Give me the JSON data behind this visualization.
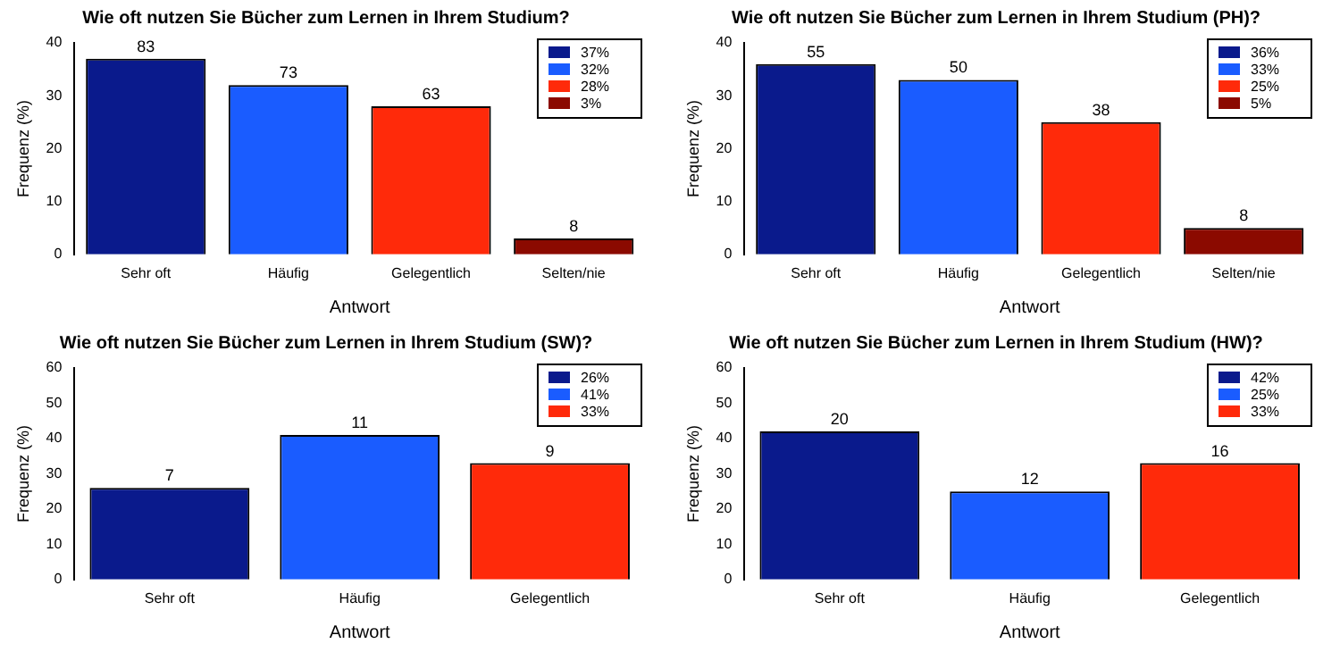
{
  "chart_data": [
    {
      "type": "bar",
      "title": "Wie oft nutzen Sie Bücher zum Lernen in Ihrem Studium?",
      "xlabel": "Antwort",
      "ylabel": "Frequenz (%)",
      "categories": [
        "Sehr oft",
        "Häufig",
        "Gelegentlich",
        "Selten/nie"
      ],
      "ylim": [
        0,
        40
      ],
      "yticks": [
        0,
        10,
        20,
        30,
        40
      ],
      "grid": false,
      "legend": "top right",
      "series": [
        {
          "name": "37%",
          "color": "#0a1a8c",
          "values": [
            37,
            null,
            null,
            null
          ]
        },
        {
          "name": "32%",
          "color": "#1a5cff",
          "values": [
            null,
            32,
            null,
            null
          ]
        },
        {
          "name": "28%",
          "color": "#ff2a0a",
          "values": [
            null,
            null,
            28,
            null
          ]
        },
        {
          "name": "3%",
          "color": "#8b0a00",
          "values": [
            null,
            null,
            null,
            3
          ]
        }
      ],
      "annotations": [
        {
          "text": "83",
          "x": "Sehr oft",
          "y": 37
        },
        {
          "text": "73",
          "x": "Häufig",
          "y": 32
        },
        {
          "text": "63",
          "x": "Gelegentlich",
          "y": 28
        },
        {
          "text": "8",
          "x": "Selten/nie",
          "y": 3
        }
      ]
    },
    {
      "type": "bar",
      "title": "Wie oft nutzen Sie Bücher zum Lernen in Ihrem Studium (PH)?",
      "xlabel": "Antwort",
      "ylabel": "Frequenz (%)",
      "categories": [
        "Sehr oft",
        "Häufig",
        "Gelegentlich",
        "Selten/nie"
      ],
      "ylim": [
        0,
        40
      ],
      "yticks": [
        0,
        10,
        20,
        30,
        40
      ],
      "grid": false,
      "legend": "top right",
      "series": [
        {
          "name": "36%",
          "color": "#0a1a8c",
          "values": [
            36,
            null,
            null,
            null
          ]
        },
        {
          "name": "33%",
          "color": "#1a5cff",
          "values": [
            null,
            33,
            null,
            null
          ]
        },
        {
          "name": "25%",
          "color": "#ff2a0a",
          "values": [
            null,
            null,
            25,
            null
          ]
        },
        {
          "name": "5%",
          "color": "#8b0a00",
          "values": [
            null,
            null,
            null,
            5
          ]
        }
      ],
      "annotations": [
        {
          "text": "55",
          "x": "Sehr oft",
          "y": 36
        },
        {
          "text": "50",
          "x": "Häufig",
          "y": 33
        },
        {
          "text": "38",
          "x": "Gelegentlich",
          "y": 25
        },
        {
          "text": "8",
          "x": "Selten/nie",
          "y": 5
        }
      ]
    },
    {
      "type": "bar",
      "title": "Wie oft nutzen Sie Bücher zum Lernen in Ihrem Studium (SW)?",
      "xlabel": "Antwort",
      "ylabel": "Frequenz (%)",
      "categories": [
        "Sehr oft",
        "Häufig",
        "Gelegentlich"
      ],
      "ylim": [
        0,
        60
      ],
      "yticks": [
        0,
        10,
        20,
        30,
        40,
        50,
        60
      ],
      "grid": false,
      "legend": "top right",
      "series": [
        {
          "name": "26%",
          "color": "#0a1a8c",
          "values": [
            26,
            null,
            null
          ]
        },
        {
          "name": "41%",
          "color": "#1a5cff",
          "values": [
            null,
            41,
            null
          ]
        },
        {
          "name": "33%",
          "color": "#ff2a0a",
          "values": [
            null,
            null,
            33
          ]
        }
      ],
      "annotations": [
        {
          "text": "7",
          "x": "Sehr oft",
          "y": 26
        },
        {
          "text": "11",
          "x": "Häufig",
          "y": 41
        },
        {
          "text": "9",
          "x": "Gelegentlich",
          "y": 33
        }
      ]
    },
    {
      "type": "bar",
      "title": "Wie oft nutzen Sie Bücher zum Lernen in Ihrem Studium (HW)?",
      "xlabel": "Antwort",
      "ylabel": "Frequenz (%)",
      "categories": [
        "Sehr oft",
        "Häufig",
        "Gelegentlich"
      ],
      "ylim": [
        0,
        60
      ],
      "yticks": [
        0,
        10,
        20,
        30,
        40,
        50,
        60
      ],
      "grid": false,
      "legend": "top right",
      "series": [
        {
          "name": "42%",
          "color": "#0a1a8c",
          "values": [
            42,
            null,
            null
          ]
        },
        {
          "name": "25%",
          "color": "#1a5cff",
          "values": [
            null,
            25,
            null
          ]
        },
        {
          "name": "33%",
          "color": "#ff2a0a",
          "values": [
            null,
            null,
            33
          ]
        }
      ],
      "annotations": [
        {
          "text": "20",
          "x": "Sehr oft",
          "y": 42
        },
        {
          "text": "12",
          "x": "Häufig",
          "y": 25
        },
        {
          "text": "16",
          "x": "Gelegentlich",
          "y": 33
        }
      ]
    }
  ]
}
